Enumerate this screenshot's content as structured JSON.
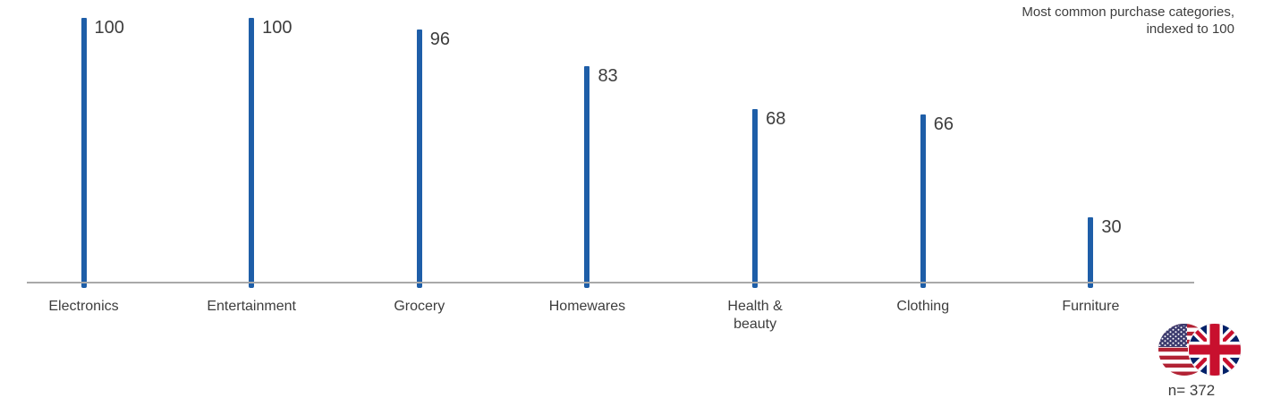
{
  "header": {
    "title": "Most common purchase categories,\nindexed to 100"
  },
  "footer": {
    "sample_label": "n= 372",
    "flag_icons": [
      "us-flag",
      "uk-flag"
    ]
  },
  "colors": {
    "bar": "#1e5ea8",
    "axis": "#a9a9a9",
    "text": "#3d3d3d",
    "flag_red": "#c8102e",
    "flag_blue_uk": "#012169",
    "flag_blue_us": "#3c3b6e"
  },
  "chart_data": {
    "type": "bar",
    "title": "Most common purchase categories, indexed to 100",
    "categories": [
      "Electronics",
      "Entertainment",
      "Grocery",
      "Homewares",
      "Health &\nbeauty",
      "Clothing",
      "Furniture"
    ],
    "values": [
      100,
      100,
      96,
      83,
      68,
      66,
      30
    ],
    "value_labels": [
      "100",
      "100",
      "96",
      "83",
      "68",
      "66",
      "30"
    ],
    "xlabel": "",
    "ylabel": "",
    "ylim": [
      0,
      100
    ],
    "grid": false,
    "legend": "none",
    "orientation": "vertical-thin-bars",
    "sample_size": 372
  }
}
